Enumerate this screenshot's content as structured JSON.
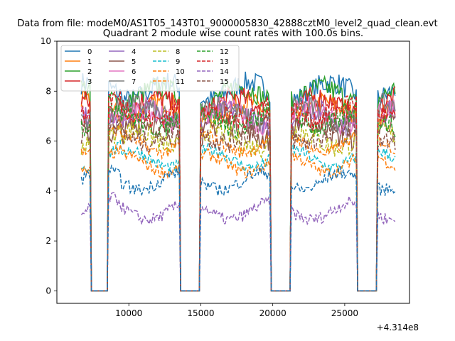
{
  "figure": {
    "suptitle": "Data from file: modeM0/AS1T05_143T01_9000005830_42888cztM0_level2_quad_clean.evt",
    "offset_text": "+4.314e8"
  },
  "chart_data": {
    "type": "line",
    "title": "Quadrant 2 module wise count rates with 100.0s bins.",
    "xlabel": "",
    "ylabel": "",
    "xlim": [
      5000,
      29500
    ],
    "ylim": [
      -0.5,
      10
    ],
    "x_offset": 431400000,
    "xticks": [
      10000,
      15000,
      20000,
      25000
    ],
    "xtick_labels": [
      "10000",
      "15000",
      "20000",
      "25000"
    ],
    "yticks": [
      0,
      2,
      4,
      6,
      8,
      10
    ],
    "ytick_labels": [
      "0",
      "2",
      "4",
      "6",
      "8",
      "10"
    ],
    "grid": false,
    "legend": {
      "position": "upper left",
      "ncol": 4
    },
    "bin_seconds": 100,
    "gaps": [
      [
        7400,
        8500
      ],
      [
        13600,
        14900
      ],
      [
        19900,
        21200
      ],
      [
        25900,
        27200
      ]
    ],
    "segments": [
      [
        6700,
        7300
      ],
      [
        8600,
        13500
      ],
      [
        15000,
        19800
      ],
      [
        21300,
        25800
      ],
      [
        27300,
        28500
      ]
    ],
    "series": [
      {
        "name": "0",
        "color": "#1f77b4",
        "style": "solid",
        "mean": 8.0
      },
      {
        "name": "1",
        "color": "#ff7f0e",
        "style": "solid",
        "mean": 7.2
      },
      {
        "name": "2",
        "color": "#2ca02c",
        "style": "solid",
        "mean": 7.8
      },
      {
        "name": "3",
        "color": "#d62728",
        "style": "solid",
        "mean": 7.4
      },
      {
        "name": "4",
        "color": "#9467bd",
        "style": "solid",
        "mean": 6.9
      },
      {
        "name": "5",
        "color": "#8c564b",
        "style": "solid",
        "mean": 6.4
      },
      {
        "name": "6",
        "color": "#e377c2",
        "style": "solid",
        "mean": 7.0
      },
      {
        "name": "7",
        "color": "#7f7f7f",
        "style": "solid",
        "mean": 7.1
      },
      {
        "name": "8",
        "color": "#bcbd22",
        "style": "dashed",
        "mean": 6.1
      },
      {
        "name": "9",
        "color": "#17becf",
        "style": "dashed",
        "mean": 5.3
      },
      {
        "name": "10",
        "color": "#ff7f0e",
        "style": "dashed",
        "mean": 5.1
      },
      {
        "name": "11",
        "color": "#ff7f0e",
        "style": "dashed",
        "mean": 5.9
      },
      {
        "name": "12",
        "color": "#2ca02c",
        "style": "dashed",
        "mean": 6.9
      },
      {
        "name": "13",
        "color": "#d62728",
        "style": "dashed",
        "mean": 7.2
      },
      {
        "name": "14",
        "color": "#9467bd",
        "style": "dashed",
        "mean": 3.2
      },
      {
        "name": "15",
        "color": "#8c564b",
        "style": "dashed",
        "mean": 6.3
      },
      {
        "name": "0d",
        "color": "#1f77b4",
        "style": "dashed",
        "mean": 4.4,
        "in_legend": false
      }
    ]
  }
}
